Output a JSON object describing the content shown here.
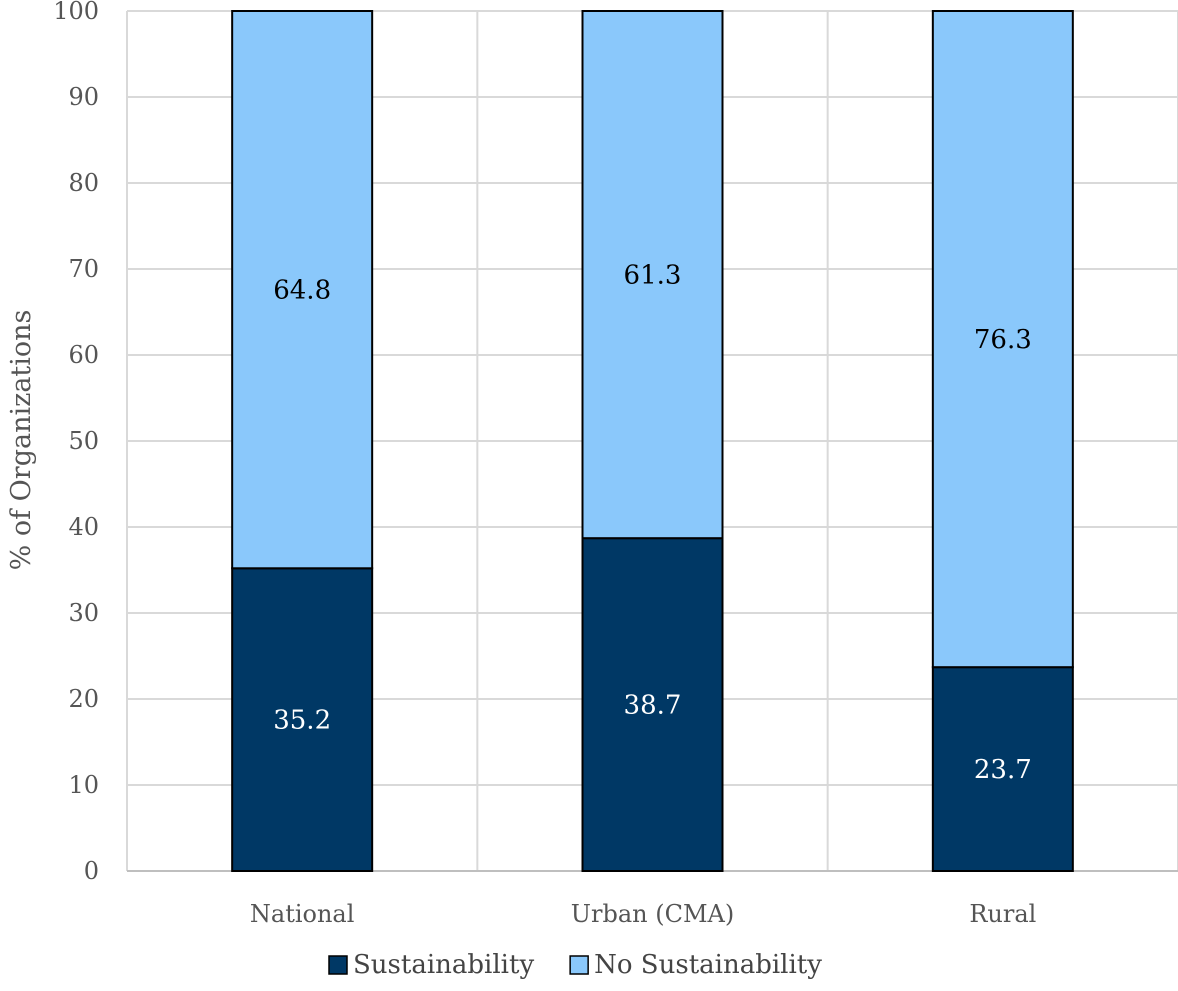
{
  "chart_data": {
    "type": "bar",
    "stacked": true,
    "categories": [
      "National",
      "Urban (CMA)",
      "Rural"
    ],
    "series": [
      {
        "name": "Sustainability",
        "values": [
          35.2,
          38.7,
          23.7
        ],
        "color": "#003865",
        "label_color": "#ffffff"
      },
      {
        "name": "No Sustainability",
        "values": [
          64.8,
          61.3,
          76.3
        ],
        "color": "#8ac8fb",
        "label_color": "#000000"
      }
    ],
    "title": "",
    "xlabel": "",
    "ylabel": "% of Organizations",
    "ylim": [
      0,
      100
    ],
    "yticks": [
      0,
      10,
      20,
      30,
      40,
      50,
      60,
      70,
      80,
      90,
      100
    ],
    "grid": true,
    "legend": "bottom-center",
    "gridline_color": "#d9d9d9",
    "bar_outline_color": "#000000"
  }
}
